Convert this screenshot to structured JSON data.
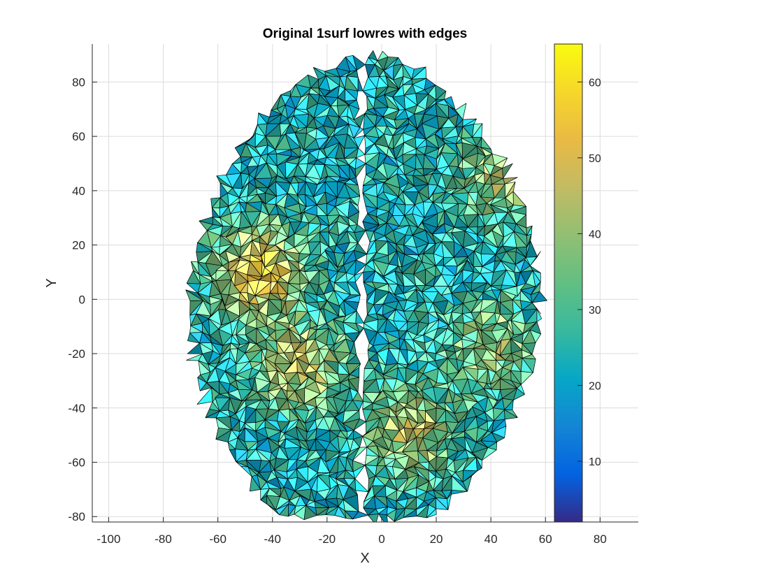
{
  "chart_data": {
    "type": "surface",
    "title": "Original 1surf lowres with edges",
    "xlabel": "X",
    "ylabel": "Y",
    "xlim": [
      -106,
      94
    ],
    "ylim": [
      -82,
      94
    ],
    "xticks": [
      -100,
      -80,
      -60,
      -40,
      -20,
      0,
      20,
      40,
      60,
      80
    ],
    "yticks": [
      -80,
      -60,
      -40,
      -20,
      0,
      20,
      40,
      60,
      80
    ],
    "grid": true,
    "colorbar": {
      "colormap": "parula",
      "clim": [
        2,
        65
      ],
      "ticks": [
        10,
        20,
        30,
        40,
        50,
        60
      ]
    },
    "surface": {
      "edges": true,
      "edge_color": "#000000",
      "left_hemisphere_x_range": [
        -70,
        -8
      ],
      "right_hemisphere_x_range": [
        -6,
        58
      ],
      "y_range": [
        -81,
        94
      ],
      "mean_value": 24,
      "high_value_regions": [
        {
          "x": -45,
          "y": 10,
          "value": 55
        },
        {
          "x": -30,
          "y": -25,
          "value": 45
        },
        {
          "x": 10,
          "y": -48,
          "value": 45
        },
        {
          "x": 40,
          "y": -18,
          "value": 40
        },
        {
          "x": 45,
          "y": 45,
          "value": 42
        }
      ]
    }
  }
}
